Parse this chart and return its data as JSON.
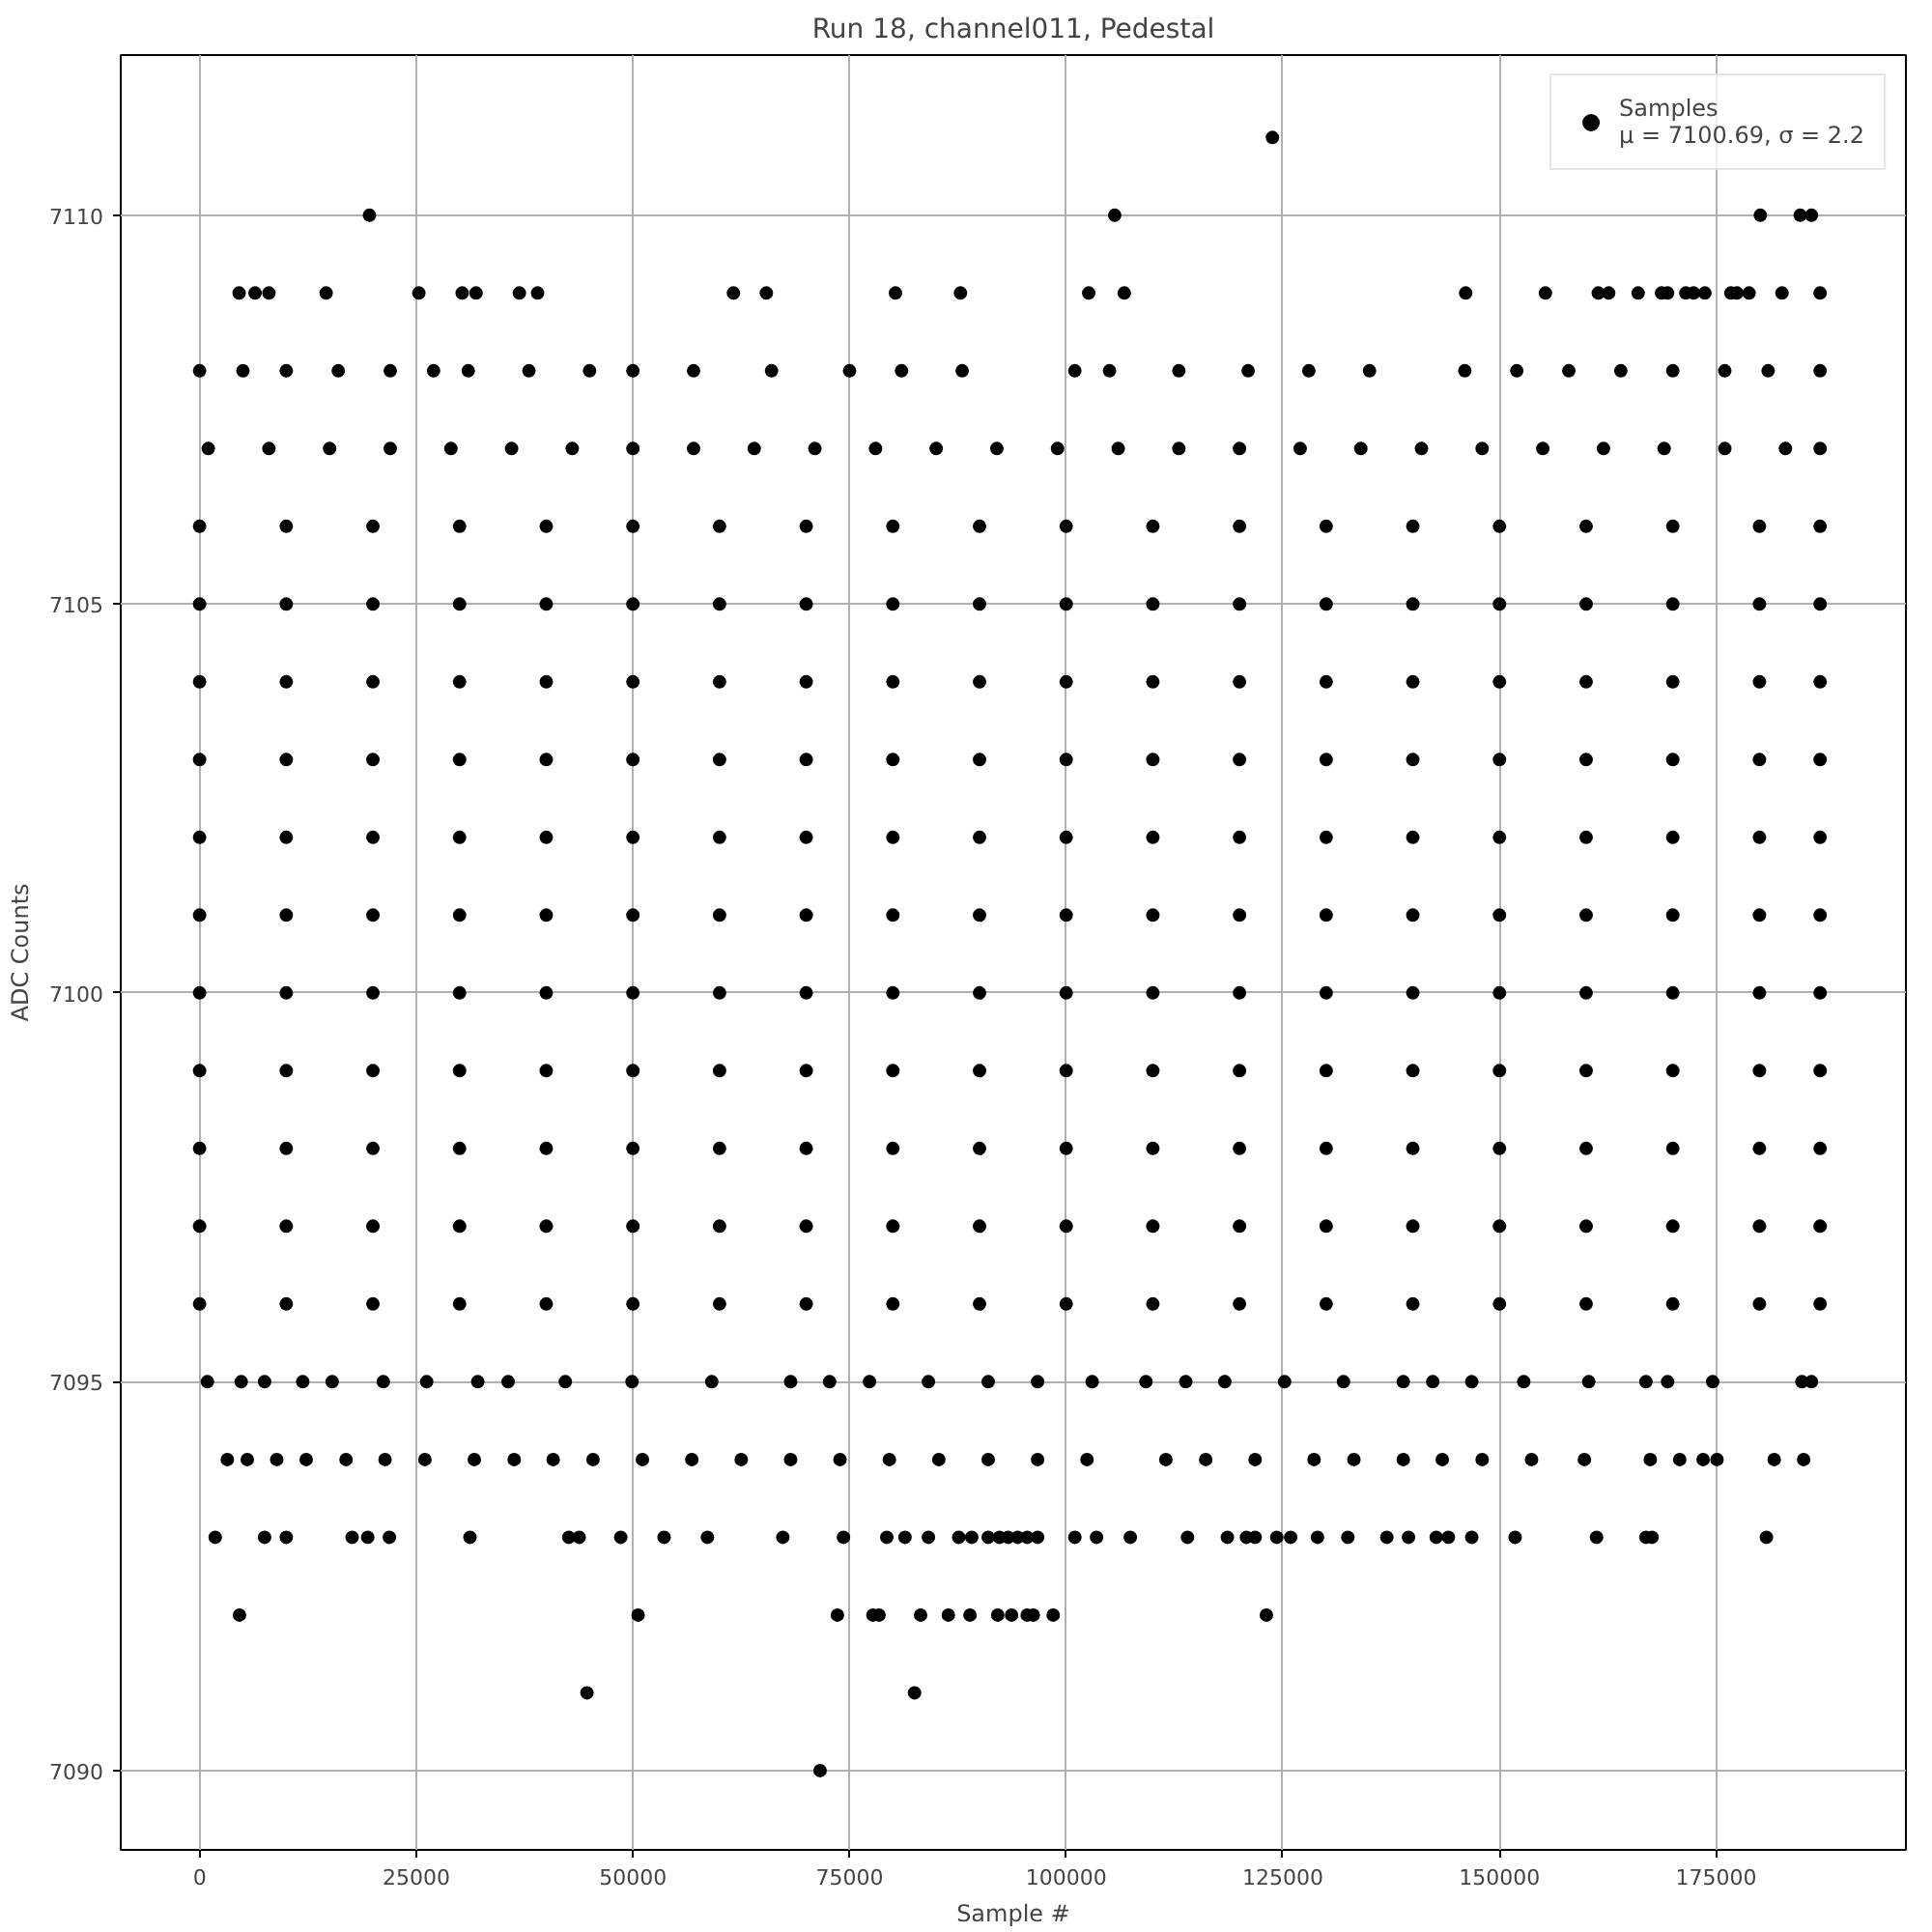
{
  "chart_data": {
    "type": "scatter",
    "title": "Run 18, channel011, Pedestal",
    "xlabel": "Sample #",
    "ylabel": "ADC Counts",
    "xlim": [
      -9100,
      196900
    ],
    "ylim": [
      7088.98,
      7112.06
    ],
    "xticks": [
      0,
      25000,
      50000,
      75000,
      100000,
      125000,
      150000,
      175000
    ],
    "yticks": [
      7090,
      7095,
      7100,
      7105,
      7110
    ],
    "grid": true,
    "legend": "top right",
    "marker": "circle",
    "series": [
      {
        "name": "Samples\nμ = 7100.69, σ = 2.2",
        "color": "#000000",
        "x": [
          123800
        ],
        "values": [
          7111
        ]
      },
      {
        "color": "#000000",
        "x": [
          19600,
          105600,
          180100,
          184700,
          186000
        ],
        "values": [
          7110,
          7110,
          7110,
          7110,
          7110
        ]
      },
      {
        "color": "#000000",
        "x": [
          4560,
          6400,
          8000,
          14600,
          25300,
          30300,
          31900,
          36900,
          39000,
          61600,
          65400,
          80300,
          87800,
          102600,
          106700,
          146100,
          155300,
          161400,
          162600,
          166000,
          168700,
          169400,
          171500,
          172400,
          173700,
          176700,
          177400,
          178800,
          182600,
          187000
        ],
        "values": [
          7109,
          7109,
          7109,
          7109,
          7109,
          7109,
          7109,
          7109,
          7109,
          7109,
          7109,
          7109,
          7109,
          7109,
          7109,
          7109,
          7109,
          7109,
          7109,
          7109,
          7109,
          7109,
          7109,
          7109,
          7109,
          7109,
          7109,
          7109,
          7109,
          7109
        ]
      },
      {
        "color": "#000000",
        "x": [
          0,
          5000,
          10000,
          16000,
          22000,
          27000,
          31000,
          38000,
          45000,
          50000,
          57000,
          66000,
          75000,
          81000,
          88000,
          101000,
          105000,
          113000,
          121000,
          128000,
          135000,
          146000,
          152000,
          158000,
          164000,
          170000,
          176000,
          181000,
          187000
        ],
        "values": [
          7108,
          7108,
          7108,
          7108,
          7108,
          7108,
          7108,
          7108,
          7108,
          7108,
          7108,
          7108,
          7108,
          7108,
          7108,
          7108,
          7108,
          7108,
          7108,
          7108,
          7108,
          7108,
          7108,
          7108,
          7108,
          7108,
          7108,
          7108,
          7108
        ]
      },
      {
        "color": "#000000",
        "x": [
          1000,
          8000,
          15000,
          22000,
          29000,
          36000,
          43000,
          50000,
          57000,
          64000,
          71000,
          78000,
          85000,
          92000,
          99000,
          106000,
          113000,
          120000,
          127000,
          134000,
          141000,
          148000,
          155000,
          162000,
          169000,
          176000,
          183000,
          187000
        ],
        "values": [
          7107,
          7107,
          7107,
          7107,
          7107,
          7107,
          7107,
          7107,
          7107,
          7107,
          7107,
          7107,
          7107,
          7107,
          7107,
          7107,
          7107,
          7107,
          7107,
          7107,
          7107,
          7107,
          7107,
          7107,
          7107,
          7107,
          7107,
          7107
        ]
      },
      {
        "color": "#000000",
        "x": [
          0,
          10000,
          20000,
          30000,
          40000,
          50000,
          60000,
          70000,
          80000,
          90000,
          100000,
          110000,
          120000,
          130000,
          140000,
          150000,
          160000,
          170000,
          180000,
          187000
        ],
        "values": [
          7106,
          7106,
          7106,
          7106,
          7106,
          7106,
          7106,
          7106,
          7106,
          7106,
          7106,
          7106,
          7106,
          7106,
          7106,
          7106,
          7106,
          7106,
          7106,
          7106
        ]
      },
      {
        "color": "#000000",
        "x": [
          0,
          10000,
          20000,
          30000,
          40000,
          50000,
          60000,
          70000,
          80000,
          90000,
          100000,
          110000,
          120000,
          130000,
          140000,
          150000,
          160000,
          170000,
          180000,
          187000
        ],
        "values": [
          7105,
          7105,
          7105,
          7105,
          7105,
          7105,
          7105,
          7105,
          7105,
          7105,
          7105,
          7105,
          7105,
          7105,
          7105,
          7105,
          7105,
          7105,
          7105,
          7105
        ]
      },
      {
        "color": "#000000",
        "x": [
          0,
          10000,
          20000,
          30000,
          40000,
          50000,
          60000,
          70000,
          80000,
          90000,
          100000,
          110000,
          120000,
          130000,
          140000,
          150000,
          160000,
          170000,
          180000,
          187000
        ],
        "values": [
          7104,
          7104,
          7104,
          7104,
          7104,
          7104,
          7104,
          7104,
          7104,
          7104,
          7104,
          7104,
          7104,
          7104,
          7104,
          7104,
          7104,
          7104,
          7104,
          7104
        ]
      },
      {
        "color": "#000000",
        "x": [
          0,
          10000,
          20000,
          30000,
          40000,
          50000,
          60000,
          70000,
          80000,
          90000,
          100000,
          110000,
          120000,
          130000,
          140000,
          150000,
          160000,
          170000,
          180000,
          187000
        ],
        "values": [
          7103,
          7103,
          7103,
          7103,
          7103,
          7103,
          7103,
          7103,
          7103,
          7103,
          7103,
          7103,
          7103,
          7103,
          7103,
          7103,
          7103,
          7103,
          7103,
          7103
        ]
      },
      {
        "color": "#000000",
        "x": [
          0,
          10000,
          20000,
          30000,
          40000,
          50000,
          60000,
          70000,
          80000,
          90000,
          100000,
          110000,
          120000,
          130000,
          140000,
          150000,
          160000,
          170000,
          180000,
          187000
        ],
        "values": [
          7102,
          7102,
          7102,
          7102,
          7102,
          7102,
          7102,
          7102,
          7102,
          7102,
          7102,
          7102,
          7102,
          7102,
          7102,
          7102,
          7102,
          7102,
          7102,
          7102
        ]
      },
      {
        "color": "#000000",
        "x": [
          0,
          10000,
          20000,
          30000,
          40000,
          50000,
          60000,
          70000,
          80000,
          90000,
          100000,
          110000,
          120000,
          130000,
          140000,
          150000,
          160000,
          170000,
          180000,
          187000
        ],
        "values": [
          7101,
          7101,
          7101,
          7101,
          7101,
          7101,
          7101,
          7101,
          7101,
          7101,
          7101,
          7101,
          7101,
          7101,
          7101,
          7101,
          7101,
          7101,
          7101,
          7101
        ]
      },
      {
        "color": "#000000",
        "x": [
          0,
          10000,
          20000,
          30000,
          40000,
          50000,
          60000,
          70000,
          80000,
          90000,
          100000,
          110000,
          120000,
          130000,
          140000,
          150000,
          160000,
          170000,
          180000,
          187000
        ],
        "values": [
          7100,
          7100,
          7100,
          7100,
          7100,
          7100,
          7100,
          7100,
          7100,
          7100,
          7100,
          7100,
          7100,
          7100,
          7100,
          7100,
          7100,
          7100,
          7100,
          7100
        ]
      },
      {
        "color": "#000000",
        "x": [
          0,
          10000,
          20000,
          30000,
          40000,
          50000,
          60000,
          70000,
          80000,
          90000,
          100000,
          110000,
          120000,
          130000,
          140000,
          150000,
          160000,
          170000,
          180000,
          187000
        ],
        "values": [
          7099,
          7099,
          7099,
          7099,
          7099,
          7099,
          7099,
          7099,
          7099,
          7099,
          7099,
          7099,
          7099,
          7099,
          7099,
          7099,
          7099,
          7099,
          7099,
          7099
        ]
      },
      {
        "color": "#000000",
        "x": [
          0,
          10000,
          20000,
          30000,
          40000,
          50000,
          60000,
          70000,
          80000,
          90000,
          100000,
          110000,
          120000,
          130000,
          140000,
          150000,
          160000,
          170000,
          180000,
          187000
        ],
        "values": [
          7098,
          7098,
          7098,
          7098,
          7098,
          7098,
          7098,
          7098,
          7098,
          7098,
          7098,
          7098,
          7098,
          7098,
          7098,
          7098,
          7098,
          7098,
          7098,
          7098
        ]
      },
      {
        "color": "#000000",
        "x": [
          0,
          10000,
          20000,
          30000,
          40000,
          50000,
          60000,
          70000,
          80000,
          90000,
          100000,
          110000,
          120000,
          130000,
          140000,
          150000,
          160000,
          170000,
          180000,
          187000
        ],
        "values": [
          7097,
          7097,
          7097,
          7097,
          7097,
          7097,
          7097,
          7097,
          7097,
          7097,
          7097,
          7097,
          7097,
          7097,
          7097,
          7097,
          7097,
          7097,
          7097,
          7097
        ]
      },
      {
        "color": "#000000",
        "x": [
          0,
          10000,
          20000,
          30000,
          40000,
          50000,
          60000,
          70000,
          80000,
          90000,
          100000,
          110000,
          120000,
          130000,
          140000,
          150000,
          160000,
          170000,
          180000,
          187000
        ],
        "values": [
          7096,
          7096,
          7096,
          7096,
          7096,
          7096,
          7096,
          7096,
          7096,
          7096,
          7096,
          7096,
          7096,
          7096,
          7096,
          7096,
          7096,
          7096,
          7096,
          7096
        ]
      },
      {
        "color": "#000000",
        "x": [
          900,
          4800,
          7500,
          11900,
          15300,
          21200,
          26200,
          32100,
          35600,
          42200,
          49900,
          59100,
          68200,
          72700,
          77300,
          84100,
          91000,
          96700,
          103000,
          109200,
          113800,
          118300,
          125200,
          132000,
          138900,
          142300,
          146800,
          152800,
          160300,
          166900,
          169400,
          174600,
          184900,
          186000
        ],
        "values": [
          7095,
          7095,
          7095,
          7095,
          7095,
          7095,
          7095,
          7095,
          7095,
          7095,
          7095,
          7095,
          7095,
          7095,
          7095,
          7095,
          7095,
          7095,
          7095,
          7095,
          7095,
          7095,
          7095,
          7095,
          7095,
          7095,
          7095,
          7095,
          7095,
          7095,
          7095,
          7095,
          7095,
          7095
        ]
      },
      {
        "color": "#000000",
        "x": [
          3200,
          5500,
          8900,
          12300,
          16900,
          21400,
          26000,
          31700,
          36300,
          40800,
          45400,
          51100,
          56800,
          62500,
          68200,
          73900,
          79600,
          85300,
          91000,
          96700,
          102400,
          111500,
          116100,
          121800,
          128600,
          133200,
          138900,
          143400,
          148000,
          153700,
          159800,
          167400,
          170800,
          173500,
          175100,
          181700,
          185100
        ],
        "values": [
          7094,
          7094,
          7094,
          7094,
          7094,
          7094,
          7094,
          7094,
          7094,
          7094,
          7094,
          7094,
          7094,
          7094,
          7094,
          7094,
          7094,
          7094,
          7094,
          7094,
          7094,
          7094,
          7094,
          7094,
          7094,
          7094,
          7094,
          7094,
          7094,
          7094,
          7094,
          7094,
          7094,
          7094,
          7094,
          7094,
          7094
        ]
      },
      {
        "color": "#000000",
        "x": [
          1800,
          7500,
          10000,
          17600,
          19400,
          21900,
          31200,
          42600,
          43800,
          48600,
          53600,
          58600,
          67300,
          74300,
          79300,
          81400,
          84100,
          87600,
          89100,
          91000,
          92300,
          93300,
          94400,
          95500,
          96700,
          101000,
          103500,
          107400,
          114000,
          118600,
          120800,
          121800,
          124300,
          125900,
          129000,
          132500,
          137000,
          139500,
          142700,
          144100,
          146800,
          151800,
          161200,
          166900,
          167600,
          180800
        ],
        "values": [
          7093,
          7093,
          7093,
          7093,
          7093,
          7093,
          7093,
          7093,
          7093,
          7093,
          7093,
          7093,
          7093,
          7093,
          7093,
          7093,
          7093,
          7093,
          7093,
          7093,
          7093,
          7093,
          7093,
          7093,
          7093,
          7093,
          7093,
          7093,
          7093,
          7093,
          7093,
          7093,
          7093,
          7093,
          7093,
          7093,
          7093,
          7093,
          7093,
          7093,
          7093,
          7093,
          7093,
          7093,
          7093,
          7093
        ]
      },
      {
        "color": "#000000",
        "x": [
          4600,
          50600,
          73600,
          77700,
          78400,
          83200,
          86400,
          88900,
          92100,
          93700,
          95500,
          96200,
          98500,
          123100
        ],
        "values": [
          7092,
          7092,
          7092,
          7092,
          7092,
          7092,
          7092,
          7092,
          7092,
          7092,
          7092,
          7092,
          7092,
          7092
        ]
      },
      {
        "color": "#000000",
        "x": [
          44700,
          82500
        ],
        "values": [
          7091,
          7091
        ]
      },
      {
        "color": "#000000",
        "x": [
          71600
        ],
        "values": [
          7090
        ]
      }
    ]
  }
}
